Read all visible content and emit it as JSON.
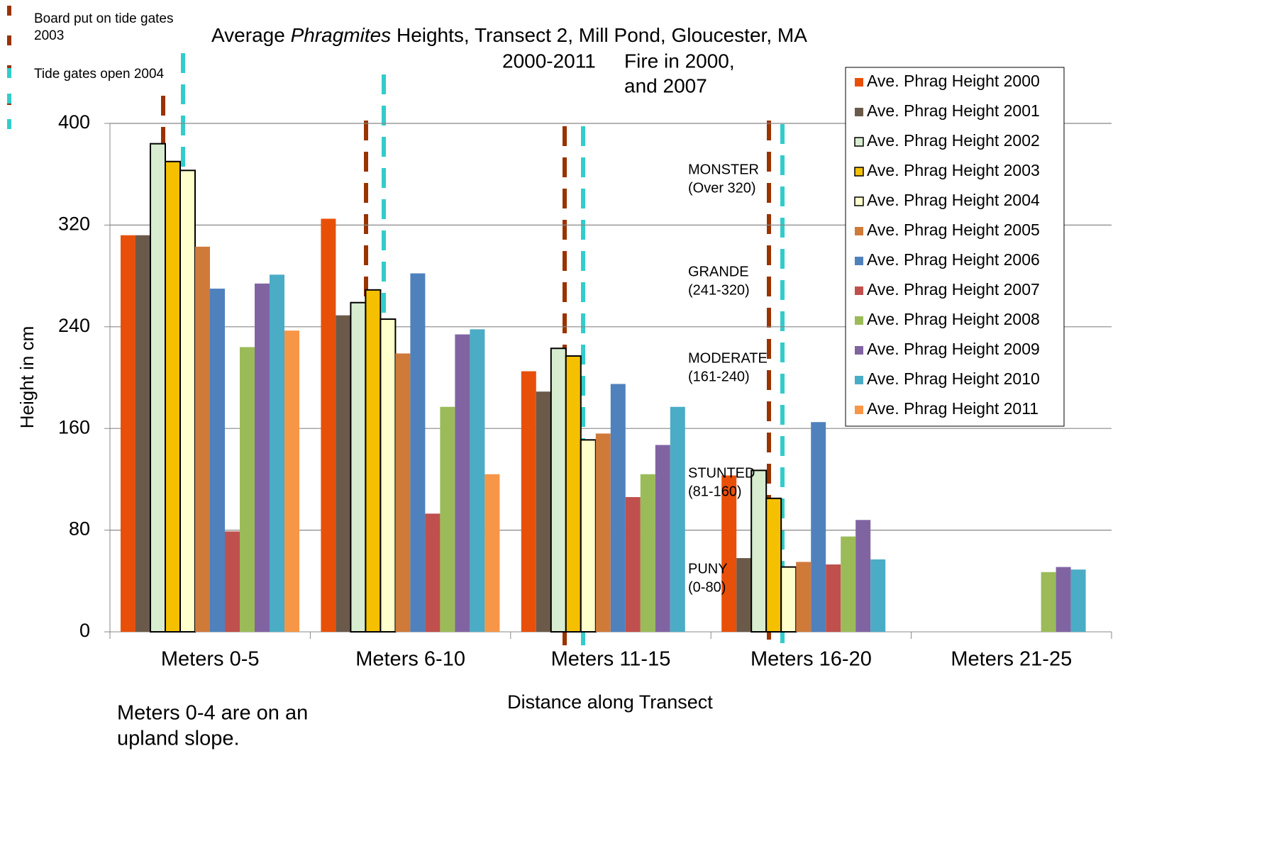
{
  "chart_data": {
    "type": "bar",
    "title_parts": [
      "Average ",
      "Phragmites",
      " Heights, Transect 2, Mill Pond, Gloucester, MA"
    ],
    "title_line2": "2000-2011",
    "fire_note": [
      "Fire in 2000,",
      "and 2007"
    ],
    "event_legend": [
      "Board put on tide gates",
      "2003",
      "Tide gates open 2004"
    ],
    "size_classes": [
      [
        "MONSTER",
        "(Over 320)"
      ],
      [
        "GRANDE",
        "(241-320)"
      ],
      [
        "MODERATE",
        "(161-240)"
      ],
      [
        "STUNTED",
        "(81-160)"
      ],
      [
        "PUNY",
        "(0-80)"
      ]
    ],
    "footnote": [
      "Meters 0-4 are on an",
      "upland slope."
    ],
    "y_label": "Height in cm",
    "x_label": "Distance along Transect",
    "categories": [
      "Meters  0-5",
      "Meters  6-10",
      "Meters  11-15",
      "Meters  16-20",
      "Meters  21-25"
    ],
    "ylim": [
      0,
      400
    ],
    "yticks": [
      0,
      80,
      160,
      240,
      320,
      400
    ],
    "grid": true,
    "series": [
      {
        "name": "Ave. Phrag Height 2000",
        "color": "#e8500a",
        "values": [
          312,
          325,
          205,
          123,
          null
        ]
      },
      {
        "name": "Ave. Phrag Height 2001",
        "color": "#6b5a4a",
        "values": [
          312,
          249,
          189,
          58,
          null
        ]
      },
      {
        "name": "Ave. Phrag Height 2002",
        "color": "#d8ecd0",
        "outline": "#000000",
        "values": [
          384,
          259,
          223,
          127,
          null
        ]
      },
      {
        "name": "Ave. Phrag Height 2003",
        "color": "#f5c000",
        "outline": "#000000",
        "values": [
          370,
          269,
          217,
          105,
          null
        ]
      },
      {
        "name": "Ave. Phrag Height 2004",
        "color": "#ffffcc",
        "outline": "#000000",
        "values": [
          363,
          246,
          151,
          51,
          null
        ]
      },
      {
        "name": "Ave. Phrag Height 2005",
        "color": "#d07a3a",
        "values": [
          303,
          219,
          156,
          55,
          null
        ]
      },
      {
        "name": "Ave. Phrag Height 2006",
        "color": "#4f81bd",
        "values": [
          270,
          282,
          195,
          165,
          null
        ]
      },
      {
        "name": "Ave. Phrag Height 2007",
        "color": "#c0504d",
        "values": [
          79,
          93,
          106,
          53,
          null
        ]
      },
      {
        "name": "Ave. Phrag Height 2008",
        "color": "#9bbb59",
        "values": [
          224,
          177,
          124,
          75,
          47
        ]
      },
      {
        "name": "Ave. Phrag Height 2009",
        "color": "#8064a2",
        "values": [
          274,
          234,
          147,
          88,
          51
        ]
      },
      {
        "name": "Ave. Phrag Height 2010",
        "color": "#4bacc6",
        "values": [
          281,
          238,
          177,
          57,
          49
        ]
      },
      {
        "name": "Ave. Phrag Height 2011",
        "color": "#f79646",
        "values": [
          237,
          124,
          null,
          null,
          null
        ]
      }
    ]
  }
}
